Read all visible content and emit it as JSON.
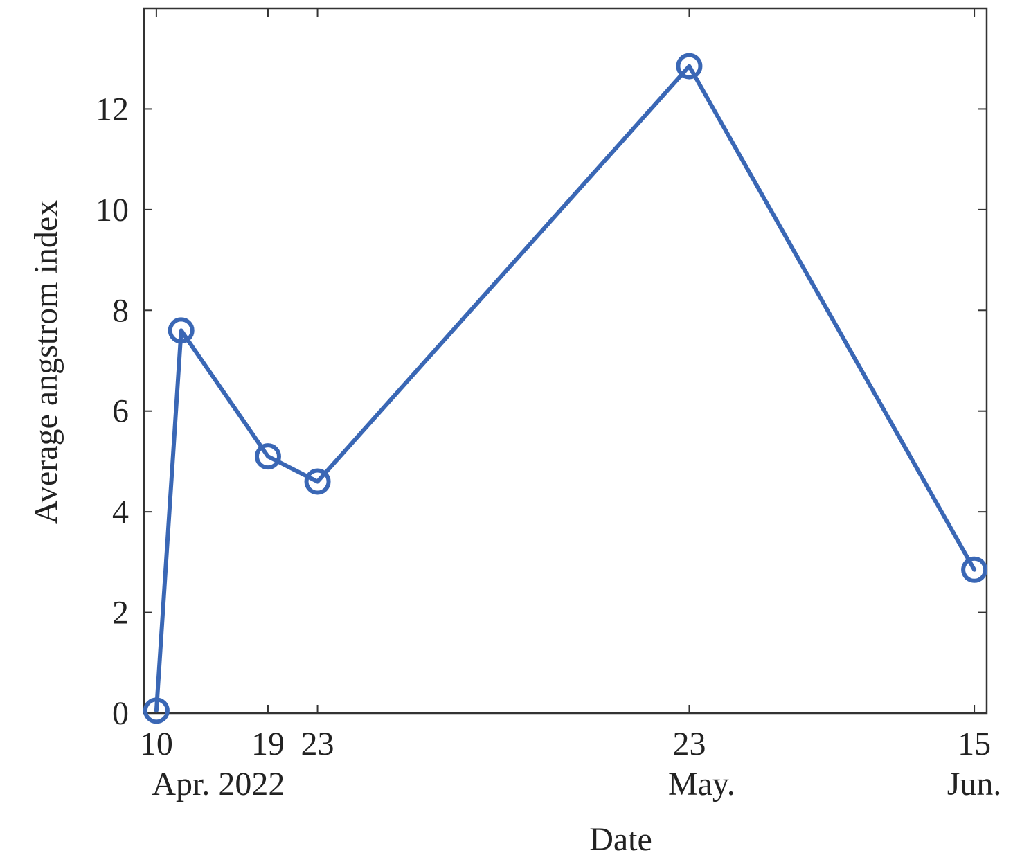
{
  "chart_data": {
    "type": "line",
    "xlabel": "Date",
    "ylabel": "Average angstrom index",
    "ylim": [
      0,
      14
    ],
    "xlim": [
      "2022-04-09",
      "2022-06-16"
    ],
    "x_ticks": [
      {
        "date": "2022-04-10",
        "label": "10"
      },
      {
        "date": "2022-04-19",
        "label": "19"
      },
      {
        "date": "2022-04-23",
        "label": "23"
      },
      {
        "date": "2022-05-23",
        "label": "23"
      },
      {
        "date": "2022-06-15",
        "label": "15"
      }
    ],
    "month_labels": [
      {
        "date": "2022-04-15",
        "label": "Apr. 2022"
      },
      {
        "date": "2022-05-24",
        "label": "May."
      },
      {
        "date": "2022-06-15",
        "label": "Jun."
      }
    ],
    "y_ticks": [
      0,
      2,
      4,
      6,
      8,
      10,
      12
    ],
    "grid": false,
    "series": [
      {
        "color": "#3a67b5",
        "marker": "circle",
        "x": [
          "2022-04-10",
          "2022-04-12",
          "2022-04-19",
          "2022-04-23",
          "2022-05-23",
          "2022-06-15"
        ],
        "y": [
          0.05,
          7.6,
          5.1,
          4.6,
          12.85,
          2.85
        ]
      }
    ]
  }
}
